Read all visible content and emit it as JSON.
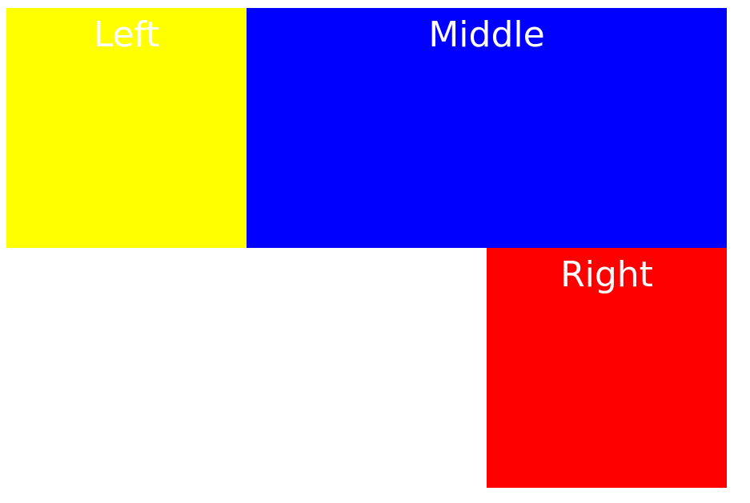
{
  "boxes": {
    "left": {
      "label": "Left",
      "color": "#ffff00"
    },
    "middle": {
      "label": "Middle",
      "color": "#0000ff"
    },
    "right": {
      "label": "Right",
      "color": "#ff0000"
    }
  },
  "page": {
    "background_color": "#ffffff",
    "text_color": "#ffffff"
  }
}
